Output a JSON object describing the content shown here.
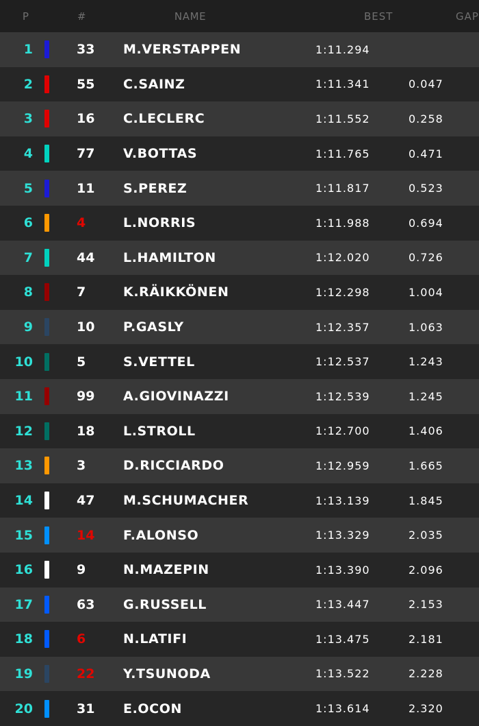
{
  "headers": {
    "pos": "P",
    "num": "#",
    "name": "NAME",
    "best": "BEST",
    "gap": "GAP"
  },
  "colors": {
    "position": "#2fe0d6",
    "highlight_number": "#e10600"
  },
  "rows": [
    {
      "pos": "1",
      "num": "33",
      "name": "M.VERSTAPPEN",
      "best": "1:11.294",
      "gap": "",
      "team_color": "#1b1bd6",
      "num_color": "#ffffff"
    },
    {
      "pos": "2",
      "num": "55",
      "name": "C.SAINZ",
      "best": "1:11.341",
      "gap": "0.047",
      "team_color": "#e00000",
      "num_color": "#ffffff"
    },
    {
      "pos": "3",
      "num": "16",
      "name": "C.LECLERC",
      "best": "1:11.552",
      "gap": "0.258",
      "team_color": "#e00000",
      "num_color": "#ffffff"
    },
    {
      "pos": "4",
      "num": "77",
      "name": "V.BOTTAS",
      "best": "1:11.765",
      "gap": "0.471",
      "team_color": "#00d2be",
      "num_color": "#ffffff"
    },
    {
      "pos": "5",
      "num": "11",
      "name": "S.PEREZ",
      "best": "1:11.817",
      "gap": "0.523",
      "team_color": "#1b1bd6",
      "num_color": "#ffffff"
    },
    {
      "pos": "6",
      "num": "4",
      "name": "L.NORRIS",
      "best": "1:11.988",
      "gap": "0.694",
      "team_color": "#ff9800",
      "num_color": "#e10600"
    },
    {
      "pos": "7",
      "num": "44",
      "name": "L.HAMILTON",
      "best": "1:12.020",
      "gap": "0.726",
      "team_color": "#00d2be",
      "num_color": "#ffffff"
    },
    {
      "pos": "8",
      "num": "7",
      "name": "K.RÄIKKÖNEN",
      "best": "1:12.298",
      "gap": "1.004",
      "team_color": "#960000",
      "num_color": "#ffffff"
    },
    {
      "pos": "9",
      "num": "10",
      "name": "P.GASLY",
      "best": "1:12.357",
      "gap": "1.063",
      "team_color": "#2b4562",
      "num_color": "#ffffff"
    },
    {
      "pos": "10",
      "num": "5",
      "name": "S.VETTEL",
      "best": "1:12.537",
      "gap": "1.243",
      "team_color": "#006f62",
      "num_color": "#ffffff"
    },
    {
      "pos": "11",
      "num": "99",
      "name": "A.GIOVINAZZI",
      "best": "1:12.539",
      "gap": "1.245",
      "team_color": "#960000",
      "num_color": "#ffffff"
    },
    {
      "pos": "12",
      "num": "18",
      "name": "L.STROLL",
      "best": "1:12.700",
      "gap": "1.406",
      "team_color": "#006f62",
      "num_color": "#ffffff"
    },
    {
      "pos": "13",
      "num": "3",
      "name": "D.RICCIARDO",
      "best": "1:12.959",
      "gap": "1.665",
      "team_color": "#ff9800",
      "num_color": "#ffffff"
    },
    {
      "pos": "14",
      "num": "47",
      "name": "M.SCHUMACHER",
      "best": "1:13.139",
      "gap": "1.845",
      "team_color": "#ffffff",
      "num_color": "#ffffff"
    },
    {
      "pos": "15",
      "num": "14",
      "name": "F.ALONSO",
      "best": "1:13.329",
      "gap": "2.035",
      "team_color": "#0090ff",
      "num_color": "#e10600"
    },
    {
      "pos": "16",
      "num": "9",
      "name": "N.MAZEPIN",
      "best": "1:13.390",
      "gap": "2.096",
      "team_color": "#ffffff",
      "num_color": "#ffffff"
    },
    {
      "pos": "17",
      "num": "63",
      "name": "G.RUSSELL",
      "best": "1:13.447",
      "gap": "2.153",
      "team_color": "#005aff",
      "num_color": "#ffffff"
    },
    {
      "pos": "18",
      "num": "6",
      "name": "N.LATIFI",
      "best": "1:13.475",
      "gap": "2.181",
      "team_color": "#005aff",
      "num_color": "#e10600"
    },
    {
      "pos": "19",
      "num": "22",
      "name": "Y.TSUNODA",
      "best": "1:13.522",
      "gap": "2.228",
      "team_color": "#2b4562",
      "num_color": "#e10600"
    },
    {
      "pos": "20",
      "num": "31",
      "name": "E.OCON",
      "best": "1:13.614",
      "gap": "2.320",
      "team_color": "#0090ff",
      "num_color": "#ffffff"
    }
  ]
}
